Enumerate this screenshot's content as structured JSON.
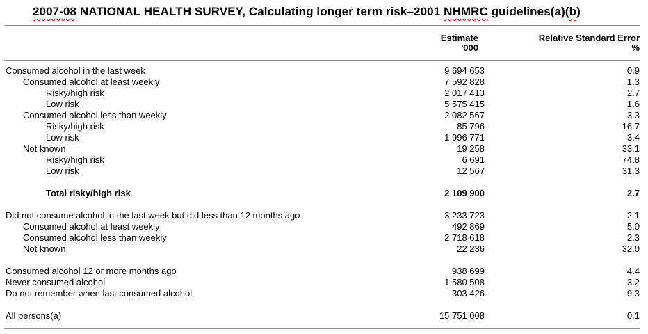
{
  "title": {
    "part1": "2007-08",
    "part2": " NATIONAL HEALTH SURVEY, Calculating longer term risk–2001 ",
    "part3": "NHMRC",
    "part4": " guidelines(a)(",
    "part5": "b",
    "part6": ")"
  },
  "header": {
    "estimate_label": "Estimate",
    "estimate_unit": "'000",
    "rse_label": "Relative Standard Error",
    "rse_unit": "%"
  },
  "table": {
    "rows": [
      {
        "label": "Consumed alcohol in the last week",
        "estimate": "9 694 653",
        "rse": "0.9",
        "indent": 0,
        "bold": false,
        "gap_before": false
      },
      {
        "label": "Consumed alcohol at least weekly",
        "estimate": "7 592 828",
        "rse": "1.3",
        "indent": 1,
        "bold": false,
        "gap_before": false
      },
      {
        "label": "Risky/high risk",
        "estimate": "2 017 413",
        "rse": "2.7",
        "indent": 2,
        "bold": false,
        "gap_before": false
      },
      {
        "label": "Low risk",
        "estimate": "5 575 415",
        "rse": "1.6",
        "indent": 2,
        "bold": false,
        "gap_before": false
      },
      {
        "label": "Consumed alcohol less than weekly",
        "estimate": "2 082 567",
        "rse": "3.3",
        "indent": 1,
        "bold": false,
        "gap_before": false
      },
      {
        "label": "Risky/high risk",
        "estimate": "85 796",
        "rse": "16.7",
        "indent": 2,
        "bold": false,
        "gap_before": false
      },
      {
        "label": "Low risk",
        "estimate": "1 996 771",
        "rse": "3.4",
        "indent": 2,
        "bold": false,
        "gap_before": false
      },
      {
        "label": "Not known",
        "estimate": "19 258",
        "rse": "33.1",
        "indent": 1,
        "bold": false,
        "gap_before": false
      },
      {
        "label": "Risky/high risk",
        "estimate": "6 691",
        "rse": "74.8",
        "indent": 2,
        "bold": false,
        "gap_before": false
      },
      {
        "label": "Low risk",
        "estimate": "12 567",
        "rse": "31.3",
        "indent": 2,
        "bold": false,
        "gap_before": false
      },
      {
        "label": "Total risky/high risk",
        "estimate": "2 109 900",
        "rse": "2.7",
        "indent": 2,
        "bold": true,
        "gap_before": true
      },
      {
        "label": "Did not consume alcohol in the last week but did less than 12 months ago",
        "estimate": "3 233 723",
        "rse": "2.1",
        "indent": 0,
        "bold": false,
        "gap_before": true
      },
      {
        "label": "Consumed alcohol at least weekly",
        "estimate": "492 869",
        "rse": "5.0",
        "indent": 1,
        "bold": false,
        "gap_before": false
      },
      {
        "label": "Consumed alcohol less than weekly",
        "estimate": "2 718 618",
        "rse": "2.3",
        "indent": 1,
        "bold": false,
        "gap_before": false
      },
      {
        "label": "Not known",
        "estimate": "22 236",
        "rse": "32.0",
        "indent": 1,
        "bold": false,
        "gap_before": false
      },
      {
        "label": "Consumed alcohol 12 or more months ago",
        "estimate": "938 699",
        "rse": "4.4",
        "indent": 0,
        "bold": false,
        "gap_before": true
      },
      {
        "label": "Never consumed alcohol",
        "estimate": "1 580 508",
        "rse": "3.2",
        "indent": 0,
        "bold": false,
        "gap_before": false
      },
      {
        "label": "Do not remember when last consumed alcohol",
        "estimate": "303 426",
        "rse": "9.3",
        "indent": 0,
        "bold": false,
        "gap_before": false
      },
      {
        "label": "All persons(a)",
        "estimate": "15 751 008",
        "rse": "0.1",
        "indent": 0,
        "bold": false,
        "gap_before": true
      }
    ]
  },
  "colors": {
    "rule_gray": "#8f8f8f",
    "squiggle_red": "#dd0000",
    "text": "#000000",
    "background": "#ffffff"
  }
}
